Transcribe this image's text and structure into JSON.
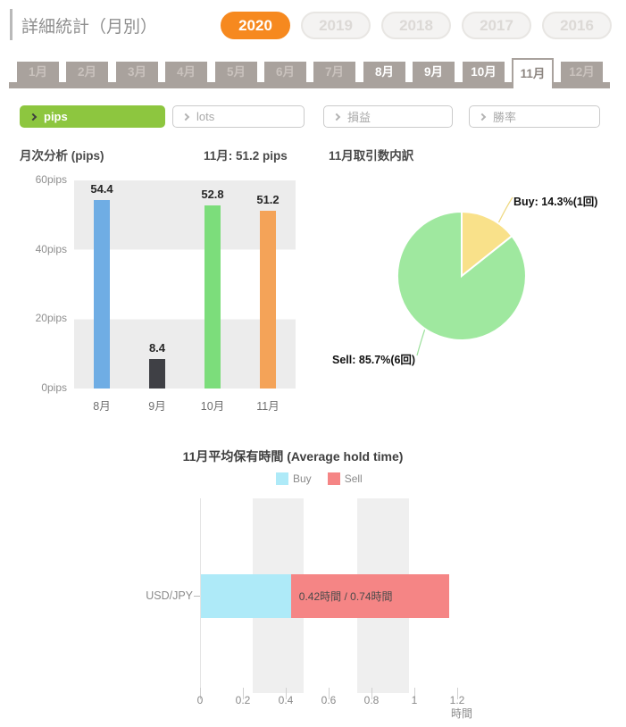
{
  "header": {
    "title": "詳細統計（月別）",
    "year_tabs": [
      {
        "label": "2020",
        "selected": true
      },
      {
        "label": "2019",
        "selected": false
      },
      {
        "label": "2018",
        "selected": false
      },
      {
        "label": "2017",
        "selected": false
      },
      {
        "label": "2016",
        "selected": false
      }
    ]
  },
  "month_tabs": [
    {
      "label": "1月",
      "state": "inactive"
    },
    {
      "label": "2月",
      "state": "inactive"
    },
    {
      "label": "3月",
      "state": "inactive"
    },
    {
      "label": "4月",
      "state": "inactive"
    },
    {
      "label": "5月",
      "state": "inactive"
    },
    {
      "label": "6月",
      "state": "inactive"
    },
    {
      "label": "7月",
      "state": "inactive"
    },
    {
      "label": "8月",
      "state": "active"
    },
    {
      "label": "9月",
      "state": "active"
    },
    {
      "label": "10月",
      "state": "active"
    },
    {
      "label": "11月",
      "state": "selected"
    },
    {
      "label": "12月",
      "state": "inactive"
    }
  ],
  "filters": [
    {
      "label": "pips",
      "selected": true
    },
    {
      "label": "lots",
      "selected": false
    },
    {
      "label": "損益",
      "selected": false
    },
    {
      "label": "勝率",
      "selected": false
    }
  ],
  "subtitles": {
    "monthly_analysis": "月次分析 (pips)",
    "month_value": "11月: 51.2 pips",
    "trade_breakdown": "11月取引数内訳"
  },
  "colors": {
    "accent_orange": "#f6891f",
    "filter_green": "#8dc63f",
    "tab_gray": "#a9a29d"
  },
  "chart_data": [
    {
      "id": "monthly_pips",
      "type": "bar",
      "title": "月次分析 (pips)",
      "categories": [
        "8月",
        "9月",
        "10月",
        "11月"
      ],
      "values": [
        54.4,
        8.4,
        52.8,
        51.2
      ],
      "value_labels": [
        "54.4",
        "8.4",
        "52.8",
        "51.2"
      ],
      "bar_colors": [
        "#6fade4",
        "#3f4045",
        "#7cdd7b",
        "#f4a358"
      ],
      "ylim": [
        0,
        60
      ],
      "yticks": [
        "0pips",
        "20pips",
        "40pips",
        "60pips"
      ],
      "grid": "alternating-horizontal-bands"
    },
    {
      "id": "trade_count_breakdown",
      "type": "pie",
      "title": "11月取引数内訳",
      "slices": [
        {
          "name": "Buy",
          "percent": 14.3,
          "count": 1,
          "label": "Buy: 14.3%(1回)",
          "color": "#f9e18a"
        },
        {
          "name": "Sell",
          "percent": 85.7,
          "count": 6,
          "label": "Sell: 85.7%(6回)",
          "color": "#9fe89f"
        }
      ],
      "start_angle_deg": 0,
      "direction": "clockwise"
    },
    {
      "id": "avg_hold_time",
      "type": "bar",
      "orientation": "horizontal",
      "stacked": true,
      "title": "11月平均保有時間 (Average hold time)",
      "categories": [
        "USD/JPY"
      ],
      "series": [
        {
          "name": "Buy",
          "values": [
            0.42
          ],
          "color": "#aeeaf8"
        },
        {
          "name": "Sell",
          "values": [
            0.74
          ],
          "color": "#f58585"
        }
      ],
      "bar_label": "0.42時間 / 0.74時間",
      "xlim": [
        0,
        1.2
      ],
      "xticks": [
        "0",
        "0.2",
        "0.4",
        "0.6",
        "0.8",
        "1",
        "1.2"
      ],
      "xlabel": "時間",
      "background_bands": [
        [
          0.24,
          0.48
        ],
        [
          0.73,
          0.97
        ]
      ],
      "legend_position": "top-center"
    }
  ]
}
